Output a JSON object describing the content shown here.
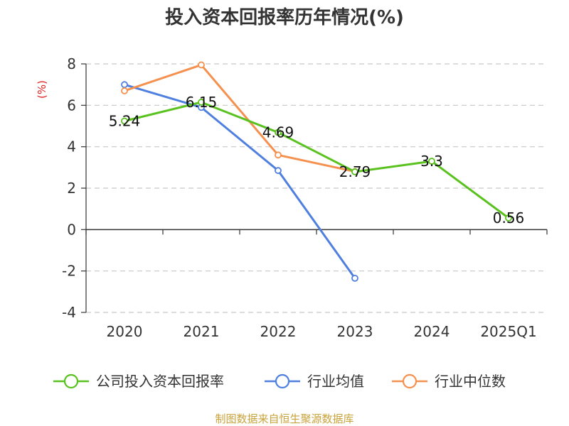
{
  "chart_data": {
    "type": "line",
    "title": "投入资本回报率历年情况(%)",
    "ylabel": "(%)",
    "xlabel": "",
    "categories": [
      "2020",
      "2021",
      "2022",
      "2023",
      "2024",
      "2025Q1"
    ],
    "ylim": [
      -4,
      8
    ],
    "yticks": [
      8,
      6,
      4,
      2,
      0,
      -2,
      -4
    ],
    "ytick_labels": [
      "8",
      "6",
      "4",
      "2",
      "0",
      "-2",
      "-4"
    ],
    "grid": true,
    "legend_position": "bottom",
    "series": [
      {
        "name": "公司投入资本回报率",
        "color": "#5ac21e",
        "values": [
          5.24,
          6.15,
          4.69,
          2.79,
          3.3,
          0.56
        ],
        "labels": [
          "5.24",
          "6.15",
          "4.69",
          "2.79",
          "3.3",
          "0.56"
        ]
      },
      {
        "name": "行业均值",
        "color": "#4f7fdf",
        "values": [
          7.0,
          5.9,
          2.85,
          -2.35,
          null,
          null
        ]
      },
      {
        "name": "行业中位数",
        "color": "#f5904f",
        "values": [
          6.7,
          7.95,
          3.6,
          2.8,
          null,
          null
        ]
      }
    ],
    "source": "制图数据来自恒生聚源数据库"
  }
}
